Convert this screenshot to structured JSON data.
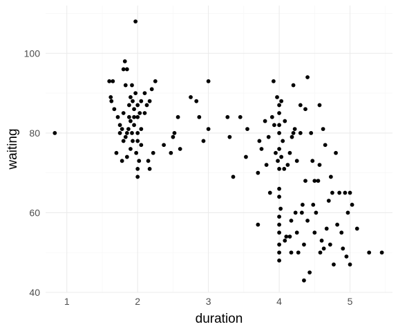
{
  "chart_data": {
    "type": "scatter",
    "title": "",
    "xlabel": "duration",
    "ylabel": "waiting",
    "xlim": [
      0.7,
      5.6
    ],
    "ylim": [
      40,
      112
    ],
    "xticks": [
      1,
      2,
      3,
      4,
      5
    ],
    "xtick_labels": [
      "1",
      "2",
      "3",
      "4",
      "5"
    ],
    "yticks": [
      40,
      60,
      80,
      100
    ],
    "ytick_labels": [
      "40",
      "60",
      "80",
      "100"
    ],
    "grid": true,
    "legend": "none",
    "colors": {
      "point": "#000000",
      "grid_major": "#ebebeb",
      "grid_minor": "#f5f5f5",
      "panel": "#ffffff",
      "tick_text": "#4d4d4d"
    },
    "points": [
      [
        0.83,
        80
      ],
      [
        1.6,
        93
      ],
      [
        1.65,
        93
      ],
      [
        1.62,
        89
      ],
      [
        1.63,
        88
      ],
      [
        1.67,
        86
      ],
      [
        1.7,
        75
      ],
      [
        1.72,
        84
      ],
      [
        1.75,
        80
      ],
      [
        1.75,
        82
      ],
      [
        1.78,
        81
      ],
      [
        1.78,
        73
      ],
      [
        1.8,
        78
      ],
      [
        1.8,
        85
      ],
      [
        1.8,
        96
      ],
      [
        1.82,
        98
      ],
      [
        1.83,
        92
      ],
      [
        1.83,
        79
      ],
      [
        1.85,
        80
      ],
      [
        1.85,
        74
      ],
      [
        1.85,
        96
      ],
      [
        1.87,
        81
      ],
      [
        1.88,
        87
      ],
      [
        1.88,
        84
      ],
      [
        1.9,
        89
      ],
      [
        1.9,
        83
      ],
      [
        1.9,
        76
      ],
      [
        1.92,
        92
      ],
      [
        1.92,
        80
      ],
      [
        1.93,
        88
      ],
      [
        1.93,
        78
      ],
      [
        1.95,
        84
      ],
      [
        1.95,
        86
      ],
      [
        1.95,
        82
      ],
      [
        1.97,
        108
      ],
      [
        1.97,
        90
      ],
      [
        1.98,
        75
      ],
      [
        2.0,
        84
      ],
      [
        2.0,
        78
      ],
      [
        2.0,
        87
      ],
      [
        2.0,
        69
      ],
      [
        2.0,
        80
      ],
      [
        2.0,
        71
      ],
      [
        2.02,
        73
      ],
      [
        2.03,
        85
      ],
      [
        2.05,
        77
      ],
      [
        2.05,
        81
      ],
      [
        2.05,
        88
      ],
      [
        2.1,
        85
      ],
      [
        2.1,
        90
      ],
      [
        2.13,
        87
      ],
      [
        2.15,
        73
      ],
      [
        2.17,
        71
      ],
      [
        2.17,
        88
      ],
      [
        2.2,
        91
      ],
      [
        2.22,
        75
      ],
      [
        2.25,
        93
      ],
      [
        2.37,
        77
      ],
      [
        2.47,
        75
      ],
      [
        2.5,
        79
      ],
      [
        2.52,
        80
      ],
      [
        2.57,
        84
      ],
      [
        2.6,
        76
      ],
      [
        2.75,
        89
      ],
      [
        2.83,
        88
      ],
      [
        2.87,
        84
      ],
      [
        2.93,
        78
      ],
      [
        3.0,
        93
      ],
      [
        3.0,
        81
      ],
      [
        3.27,
        84
      ],
      [
        3.3,
        79
      ],
      [
        3.35,
        69
      ],
      [
        3.45,
        84
      ],
      [
        3.53,
        74
      ],
      [
        3.55,
        81
      ],
      [
        3.7,
        57
      ],
      [
        3.7,
        70
      ],
      [
        3.72,
        78
      ],
      [
        3.75,
        76
      ],
      [
        3.8,
        83
      ],
      [
        3.82,
        72
      ],
      [
        3.85,
        79
      ],
      [
        3.87,
        65
      ],
      [
        3.9,
        84
      ],
      [
        3.92,
        93
      ],
      [
        3.93,
        82
      ],
      [
        3.95,
        75
      ],
      [
        3.97,
        89
      ],
      [
        3.98,
        73
      ],
      [
        4.0,
        87
      ],
      [
        4.0,
        64
      ],
      [
        4.0,
        66
      ],
      [
        4.0,
        59
      ],
      [
        4.0,
        57
      ],
      [
        4.0,
        55
      ],
      [
        4.0,
        52
      ],
      [
        4.0,
        50
      ],
      [
        4.0,
        48
      ],
      [
        4.0,
        80
      ],
      [
        4.0,
        76
      ],
      [
        4.0,
        85
      ],
      [
        4.0,
        71
      ],
      [
        4.0,
        82
      ],
      [
        4.02,
        61
      ],
      [
        4.03,
        74
      ],
      [
        4.03,
        88
      ],
      [
        4.05,
        78
      ],
      [
        4.07,
        71
      ],
      [
        4.08,
        83
      ],
      [
        4.08,
        53
      ],
      [
        4.1,
        54
      ],
      [
        4.12,
        72
      ],
      [
        4.15,
        54
      ],
      [
        4.15,
        75
      ],
      [
        4.17,
        58
      ],
      [
        4.17,
        50
      ],
      [
        4.18,
        79
      ],
      [
        4.2,
        92
      ],
      [
        4.2,
        80
      ],
      [
        4.22,
        81
      ],
      [
        4.23,
        60
      ],
      [
        4.25,
        73
      ],
      [
        4.25,
        55
      ],
      [
        4.27,
        50
      ],
      [
        4.3,
        80
      ],
      [
        4.3,
        87
      ],
      [
        4.32,
        60
      ],
      [
        4.33,
        62
      ],
      [
        4.35,
        43
      ],
      [
        4.35,
        52
      ],
      [
        4.37,
        86
      ],
      [
        4.37,
        68
      ],
      [
        4.4,
        94
      ],
      [
        4.4,
        58
      ],
      [
        4.43,
        45
      ],
      [
        4.45,
        80
      ],
      [
        4.47,
        73
      ],
      [
        4.48,
        62
      ],
      [
        4.5,
        68
      ],
      [
        4.5,
        55
      ],
      [
        4.52,
        60
      ],
      [
        4.55,
        68
      ],
      [
        4.57,
        87
      ],
      [
        4.57,
        72
      ],
      [
        4.58,
        50
      ],
      [
        4.6,
        53
      ],
      [
        4.62,
        81
      ],
      [
        4.63,
        51
      ],
      [
        4.65,
        77
      ],
      [
        4.67,
        56
      ],
      [
        4.7,
        63
      ],
      [
        4.72,
        52
      ],
      [
        4.73,
        69
      ],
      [
        4.75,
        65
      ],
      [
        4.77,
        47
      ],
      [
        4.8,
        75
      ],
      [
        4.82,
        57
      ],
      [
        4.85,
        65
      ],
      [
        4.88,
        55
      ],
      [
        4.9,
        51
      ],
      [
        4.93,
        65
      ],
      [
        4.95,
        49
      ],
      [
        4.97,
        60
      ],
      [
        5.0,
        47
      ],
      [
        5.0,
        65
      ],
      [
        5.03,
        62
      ],
      [
        5.1,
        56
      ],
      [
        5.27,
        50
      ],
      [
        5.45,
        50
      ]
    ]
  }
}
